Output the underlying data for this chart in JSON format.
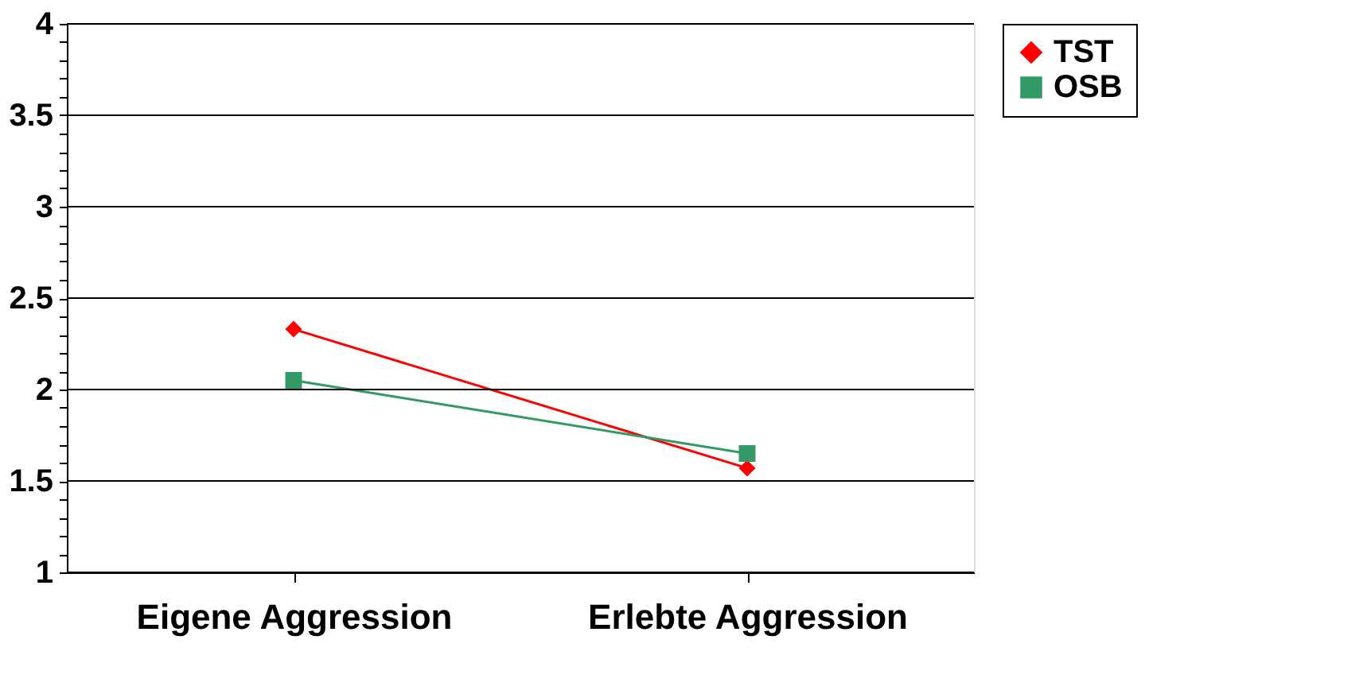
{
  "chart_data": {
    "type": "line",
    "categories": [
      "Eigene Aggression",
      "Erlebte Aggression"
    ],
    "series": [
      {
        "name": "TST",
        "color": "#ff0000",
        "marker": "diamond",
        "values": [
          2.33,
          1.57
        ]
      },
      {
        "name": "OSB",
        "color": "#339966",
        "marker": "square",
        "values": [
          2.05,
          1.65
        ]
      }
    ],
    "ylim": [
      1,
      4
    ],
    "yticks": [
      1,
      {
        "value": 1.1,
        "label": null
      },
      {
        "value": 1.2,
        "label": null
      },
      {
        "value": 1.3,
        "label": null
      },
      {
        "value": 1.4,
        "label": null
      },
      1.5,
      {
        "value": 1.6,
        "label": null
      },
      {
        "value": 1.7,
        "label": null
      },
      {
        "value": 1.8,
        "label": null
      },
      {
        "value": 1.9,
        "label": null
      },
      2,
      {
        "value": 2.1,
        "label": null
      },
      {
        "value": 2.2,
        "label": null
      },
      {
        "value": 2.3,
        "label": null
      },
      {
        "value": 2.4,
        "label": null
      },
      2.5,
      {
        "value": 2.6,
        "label": null
      },
      {
        "value": 2.7,
        "label": null
      },
      {
        "value": 2.8,
        "label": null
      },
      {
        "value": 2.9,
        "label": null
      },
      3,
      {
        "value": 3.1,
        "label": null
      },
      {
        "value": 3.2,
        "label": null
      },
      {
        "value": 3.3,
        "label": null
      },
      {
        "value": 3.4,
        "label": null
      },
      3.5,
      {
        "value": 3.6,
        "label": null
      },
      {
        "value": 3.7,
        "label": null
      },
      {
        "value": 3.8,
        "label": null
      },
      {
        "value": 3.9,
        "label": null
      },
      4
    ],
    "grid": "y",
    "legend": "right"
  }
}
